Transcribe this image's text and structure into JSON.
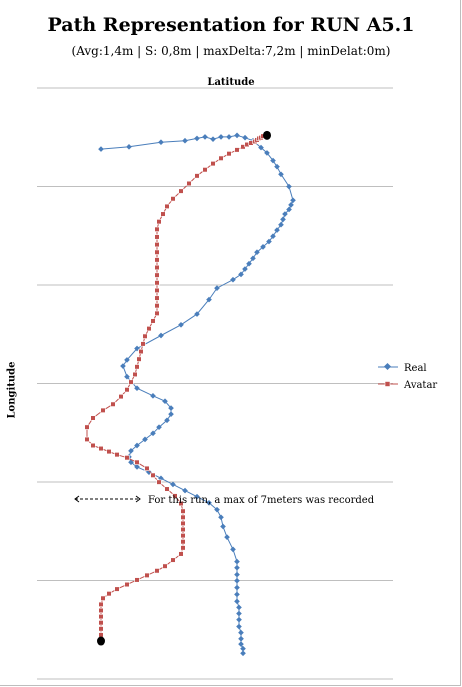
{
  "chart_data": {
    "type": "scatter",
    "title": "Path Representation for RUN A5.1",
    "subtitle": "(Avg:1,4m | S: 0,8m | maxDelta:7,2m | minDelat:0m)",
    "xlabel": "Latitude",
    "ylabel": "Longitude",
    "grid": true,
    "legend_position": "right",
    "series": [
      {
        "name": "Real",
        "color": "#4a7ebb",
        "marker": "diamond",
        "line": true,
        "x": [
          3.2,
          4.6,
          6.2,
          7.4,
          8.0,
          8.4,
          8.8,
          9.2,
          9.6,
          10.0,
          10.4,
          10.8,
          11.2,
          11.5,
          11.8,
          12.0,
          12.2,
          12.6,
          12.8,
          12.7,
          12.6,
          12.4,
          12.3,
          12.2,
          12.0,
          11.8,
          11.6,
          11.3,
          11.0,
          10.8,
          10.6,
          10.4,
          10.2,
          9.8,
          9.0,
          8.6,
          8.0,
          7.2,
          6.2,
          5.0,
          4.5,
          4.3,
          4.5,
          5.0,
          5.8,
          6.4,
          6.7,
          6.7,
          6.5,
          6.1,
          5.8,
          5.4,
          5.0,
          4.7,
          4.6,
          4.7,
          5.0,
          5.6,
          6.2,
          6.8,
          7.4,
          8.0,
          8.6,
          9.0,
          9.2,
          9.3,
          9.5,
          9.8,
          10.0,
          10.0,
          10.0,
          10.0,
          10.0,
          10.0,
          10.0,
          10.1,
          10.1,
          10.1,
          10.1,
          10.2,
          10.2,
          10.2,
          10.3,
          10.3
        ],
        "y": [
          66.0,
          66.3,
          66.9,
          67.1,
          67.4,
          67.6,
          67.3,
          67.6,
          67.6,
          67.8,
          67.5,
          67.1,
          66.2,
          65.5,
          64.5,
          63.7,
          62.7,
          61.1,
          59.3,
          58.7,
          58.1,
          57.5,
          56.8,
          56.1,
          55.4,
          54.6,
          53.9,
          53.2,
          52.5,
          51.7,
          51.0,
          50.3,
          49.6,
          48.9,
          47.8,
          46.3,
          44.4,
          43.0,
          41.6,
          39.9,
          38.4,
          37.6,
          36.2,
          34.7,
          33.7,
          33.0,
          32.1,
          31.3,
          30.5,
          29.6,
          28.8,
          28.0,
          27.2,
          26.5,
          25.7,
          25.0,
          24.4,
          23.7,
          22.9,
          22.1,
          21.3,
          20.5,
          19.7,
          18.8,
          17.8,
          16.6,
          15.2,
          13.6,
          12.0,
          11.2,
          10.3,
          9.5,
          8.6,
          7.7,
          6.8,
          6.0,
          5.2,
          4.4,
          3.5,
          2.7,
          1.9,
          1.2,
          0.6,
          0.0
        ]
      },
      {
        "name": "Avatar",
        "color": "#c0504d",
        "marker": "square",
        "line": true,
        "x": [
          3.2,
          3.2,
          3.2,
          3.2,
          3.2,
          3.2,
          3.2,
          3.3,
          3.6,
          4.0,
          4.5,
          5.0,
          5.5,
          6.0,
          6.4,
          6.8,
          7.2,
          7.3,
          7.3,
          7.3,
          7.3,
          7.3,
          7.3,
          7.3,
          7.2,
          6.9,
          6.5,
          6.1,
          5.8,
          5.5,
          5.0,
          4.5,
          4.0,
          3.6,
          3.2,
          2.8,
          2.5,
          2.5,
          2.8,
          3.3,
          3.8,
          4.2,
          4.5,
          4.7,
          4.9,
          5.0,
          5.1,
          5.2,
          5.3,
          5.4,
          5.6,
          5.8,
          6.0,
          6.0,
          6.0,
          6.0,
          6.0,
          6.0,
          6.0,
          6.0,
          6.0,
          6.0,
          6.0,
          6.0,
          6.1,
          6.3,
          6.5,
          6.8,
          7.2,
          7.6,
          8.0,
          8.4,
          8.8,
          9.2,
          9.6,
          10.0,
          10.3,
          10.5,
          10.7,
          10.9,
          11.0,
          11.1,
          11.2,
          11.3,
          11.5
        ],
        "y": [
          1.6,
          2.4,
          3.2,
          4.0,
          4.8,
          5.6,
          6.4,
          7.2,
          7.8,
          8.4,
          9.0,
          9.6,
          10.2,
          10.8,
          11.4,
          12.2,
          13.0,
          13.8,
          14.6,
          15.4,
          16.2,
          17.0,
          17.8,
          18.6,
          19.6,
          20.6,
          21.5,
          22.4,
          23.3,
          24.2,
          25.0,
          25.6,
          26.0,
          26.4,
          26.8,
          27.2,
          28.0,
          29.6,
          30.8,
          31.8,
          32.6,
          33.6,
          34.5,
          35.5,
          36.5,
          37.5,
          38.5,
          39.5,
          40.5,
          41.5,
          42.5,
          43.5,
          44.5,
          45.5,
          46.5,
          47.5,
          48.5,
          49.5,
          50.5,
          51.5,
          52.5,
          53.5,
          54.5,
          55.5,
          56.5,
          57.5,
          58.5,
          59.5,
          60.5,
          61.5,
          62.5,
          63.3,
          64.1,
          64.8,
          65.4,
          65.9,
          66.3,
          66.6,
          66.8,
          67.0,
          67.2,
          67.4,
          67.5,
          67.7,
          67.8
        ]
      }
    ],
    "ylim": [
      -3.5,
      74
    ],
    "xlim": [
      0,
      17.8
    ]
  },
  "annotation": {
    "text": "For this run, a max of 7meters was recorded"
  }
}
